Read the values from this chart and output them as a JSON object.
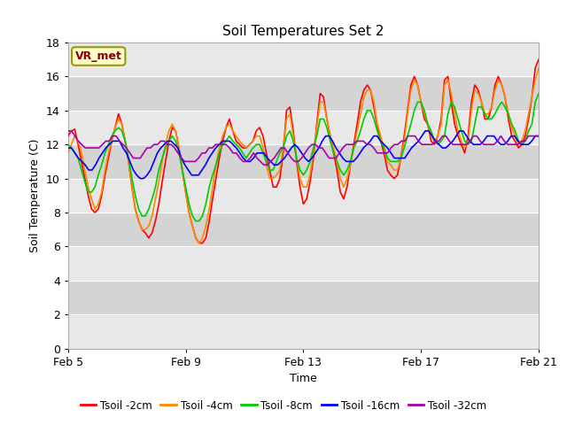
{
  "title": "Soil Temperatures Set 2",
  "xlabel": "Time",
  "ylabel": "Soil Temperature (C)",
  "ylim": [
    0,
    18
  ],
  "yticks": [
    0,
    2,
    4,
    6,
    8,
    10,
    12,
    14,
    16,
    18
  ],
  "background_color": "#ffffff",
  "plot_bg_light": "#f0f0f0",
  "plot_bg_dark": "#d8d8d8",
  "annotation_text": "VR_met",
  "annotation_bg": "#ffffcc",
  "annotation_border": "#999900",
  "legend_labels": [
    "Tsoil -2cm",
    "Tsoil -4cm",
    "Tsoil -8cm",
    "Tsoil -16cm",
    "Tsoil -32cm"
  ],
  "line_colors": [
    "#ff0000",
    "#ff8800",
    "#00cc00",
    "#0000ff",
    "#aa00aa"
  ],
  "x_tick_labels": [
    "Feb 5",
    "Feb 9",
    "Feb 13",
    "Feb 17",
    "Feb 21"
  ],
  "x_tick_positions": [
    0,
    4,
    8,
    12,
    16
  ],
  "series": {
    "tsoil_2cm": [
      12.5,
      12.8,
      12.9,
      12.0,
      11.0,
      10.0,
      9.0,
      8.2,
      8.0,
      8.2,
      9.0,
      10.2,
      11.2,
      12.2,
      13.0,
      13.8,
      13.2,
      12.2,
      11.0,
      9.5,
      8.2,
      7.5,
      7.0,
      6.8,
      6.5,
      6.8,
      7.5,
      8.5,
      9.8,
      11.0,
      12.2,
      13.0,
      12.8,
      11.8,
      10.5,
      9.2,
      8.0,
      7.2,
      6.5,
      6.2,
      6.2,
      6.5,
      7.5,
      8.8,
      10.0,
      11.2,
      12.2,
      13.0,
      13.5,
      12.8,
      12.2,
      12.0,
      11.8,
      11.8,
      12.0,
      12.2,
      12.8,
      13.0,
      12.5,
      11.5,
      10.5,
      9.5,
      9.5,
      10.0,
      11.5,
      14.0,
      14.2,
      12.8,
      11.0,
      9.5,
      8.5,
      8.8,
      9.8,
      11.2,
      13.2,
      15.0,
      14.8,
      13.5,
      12.5,
      11.5,
      10.5,
      9.2,
      8.8,
      9.5,
      10.8,
      12.0,
      13.2,
      14.5,
      15.2,
      15.5,
      15.2,
      14.2,
      13.0,
      12.2,
      11.5,
      10.5,
      10.2,
      10.0,
      10.2,
      11.2,
      12.5,
      14.0,
      15.5,
      16.0,
      15.5,
      14.5,
      13.5,
      13.2,
      12.2,
      12.0,
      12.5,
      13.5,
      15.8,
      16.0,
      14.5,
      13.2,
      12.5,
      12.0,
      11.5,
      12.5,
      14.5,
      15.5,
      15.2,
      14.5,
      13.5,
      13.5,
      14.2,
      15.5,
      16.0,
      15.5,
      14.8,
      13.5,
      12.5,
      12.2,
      11.8,
      12.0,
      12.5,
      13.5,
      14.8,
      16.5,
      17.0
    ],
    "tsoil_4cm": [
      11.5,
      12.0,
      12.5,
      12.2,
      11.5,
      10.5,
      9.5,
      8.8,
      8.2,
      8.5,
      9.2,
      10.5,
      11.5,
      12.2,
      13.0,
      13.5,
      13.2,
      12.2,
      11.0,
      9.5,
      8.2,
      7.5,
      7.0,
      7.0,
      7.2,
      7.8,
      8.8,
      9.8,
      11.0,
      12.0,
      12.8,
      13.2,
      12.8,
      11.8,
      10.5,
      9.2,
      8.0,
      7.2,
      6.5,
      6.2,
      6.5,
      7.2,
      8.2,
      9.5,
      10.8,
      11.8,
      12.5,
      13.0,
      13.2,
      12.8,
      12.5,
      12.2,
      12.0,
      11.8,
      12.0,
      12.2,
      12.5,
      12.5,
      11.8,
      10.8,
      10.0,
      10.0,
      10.2,
      10.5,
      11.8,
      13.5,
      13.8,
      12.5,
      11.2,
      10.0,
      9.5,
      9.5,
      10.2,
      11.5,
      13.0,
      14.5,
      14.5,
      13.5,
      12.5,
      11.8,
      11.0,
      10.0,
      9.5,
      10.0,
      10.8,
      11.8,
      12.8,
      13.8,
      14.8,
      15.2,
      15.2,
      14.5,
      13.2,
      12.5,
      11.8,
      11.0,
      10.8,
      10.5,
      10.5,
      11.2,
      12.2,
      13.8,
      15.2,
      15.8,
      15.5,
      14.5,
      13.8,
      13.2,
      12.5,
      12.2,
      12.5,
      13.2,
      15.5,
      15.8,
      15.0,
      13.8,
      12.8,
      12.2,
      11.8,
      12.2,
      14.0,
      15.2,
      15.0,
      14.5,
      13.8,
      13.8,
      14.2,
      15.2,
      15.8,
      15.5,
      14.8,
      13.8,
      13.0,
      12.5,
      12.0,
      12.2,
      12.8,
      13.8,
      14.8,
      15.8,
      16.5
    ],
    "tsoil_8cm": [
      12.0,
      11.8,
      11.5,
      11.2,
      10.5,
      9.8,
      9.2,
      9.2,
      9.5,
      10.2,
      10.8,
      11.5,
      12.0,
      12.5,
      12.8,
      13.0,
      12.8,
      12.2,
      11.2,
      10.0,
      9.0,
      8.2,
      7.8,
      7.8,
      8.2,
      8.8,
      9.5,
      10.5,
      11.2,
      11.8,
      12.2,
      12.5,
      12.2,
      11.5,
      10.5,
      9.5,
      8.5,
      7.8,
      7.5,
      7.5,
      7.8,
      8.5,
      9.5,
      10.2,
      10.8,
      11.5,
      12.0,
      12.2,
      12.5,
      12.2,
      12.0,
      11.8,
      11.5,
      11.2,
      11.5,
      11.8,
      12.0,
      12.0,
      11.5,
      11.0,
      10.5,
      10.5,
      11.0,
      11.5,
      11.8,
      12.5,
      12.8,
      12.2,
      11.2,
      10.5,
      10.2,
      10.5,
      11.0,
      11.8,
      12.5,
      13.5,
      13.5,
      13.0,
      12.2,
      11.5,
      11.0,
      10.5,
      10.2,
      10.5,
      11.0,
      11.8,
      12.2,
      12.8,
      13.5,
      14.0,
      14.0,
      13.5,
      12.8,
      12.2,
      11.8,
      11.2,
      11.0,
      11.0,
      11.0,
      11.2,
      11.8,
      12.5,
      13.2,
      14.0,
      14.5,
      14.5,
      14.0,
      13.2,
      12.8,
      12.2,
      12.0,
      12.2,
      12.5,
      13.8,
      14.5,
      14.2,
      13.5,
      12.8,
      12.2,
      12.0,
      12.2,
      13.2,
      14.2,
      14.2,
      13.8,
      13.5,
      13.5,
      13.8,
      14.2,
      14.5,
      14.2,
      13.8,
      13.2,
      12.8,
      12.2,
      12.0,
      12.2,
      12.8,
      13.2,
      14.5,
      15.0
    ],
    "tsoil_16cm": [
      11.8,
      11.8,
      11.5,
      11.2,
      11.0,
      10.8,
      10.5,
      10.5,
      10.8,
      11.2,
      11.5,
      11.8,
      12.0,
      12.2,
      12.2,
      12.2,
      11.8,
      11.5,
      11.0,
      10.5,
      10.2,
      10.0,
      10.0,
      10.2,
      10.5,
      11.0,
      11.5,
      11.8,
      12.0,
      12.2,
      12.2,
      12.0,
      11.8,
      11.2,
      10.8,
      10.5,
      10.2,
      10.2,
      10.2,
      10.5,
      10.8,
      11.2,
      11.5,
      11.8,
      12.0,
      12.2,
      12.2,
      12.2,
      12.0,
      11.8,
      11.5,
      11.2,
      11.0,
      11.0,
      11.2,
      11.5,
      11.5,
      11.5,
      11.2,
      11.0,
      10.8,
      10.8,
      11.0,
      11.2,
      11.5,
      11.8,
      12.0,
      11.8,
      11.5,
      11.2,
      11.0,
      11.2,
      11.5,
      11.8,
      12.2,
      12.5,
      12.5,
      12.2,
      11.8,
      11.5,
      11.2,
      11.0,
      11.0,
      11.0,
      11.2,
      11.5,
      11.8,
      12.0,
      12.2,
      12.5,
      12.5,
      12.2,
      12.0,
      11.8,
      11.5,
      11.2,
      11.2,
      11.2,
      11.2,
      11.5,
      11.8,
      12.0,
      12.2,
      12.5,
      12.8,
      12.8,
      12.5,
      12.2,
      12.0,
      11.8,
      11.8,
      12.0,
      12.2,
      12.5,
      12.8,
      12.8,
      12.5,
      12.2,
      12.0,
      12.0,
      12.0,
      12.2,
      12.5,
      12.5,
      12.5,
      12.2,
      12.0,
      12.0,
      12.2,
      12.5,
      12.5,
      12.2,
      12.0,
      12.0,
      12.0,
      12.2,
      12.5,
      12.5
    ],
    "tsoil_32cm": [
      12.8,
      12.8,
      12.5,
      12.2,
      12.0,
      11.8,
      11.8,
      11.8,
      11.8,
      11.8,
      12.0,
      12.2,
      12.2,
      12.5,
      12.5,
      12.2,
      12.0,
      11.8,
      11.5,
      11.2,
      11.2,
      11.2,
      11.5,
      11.8,
      11.8,
      12.0,
      12.0,
      12.2,
      12.2,
      12.0,
      12.0,
      11.8,
      11.5,
      11.2,
      11.0,
      11.0,
      11.0,
      11.0,
      11.2,
      11.5,
      11.5,
      11.8,
      11.8,
      12.0,
      12.0,
      12.0,
      12.0,
      11.8,
      11.5,
      11.5,
      11.2,
      11.0,
      11.0,
      11.2,
      11.5,
      11.2,
      11.0,
      10.8,
      10.8,
      11.0,
      11.2,
      11.5,
      11.8,
      11.8,
      11.5,
      11.2,
      11.0,
      11.0,
      11.2,
      11.5,
      11.8,
      12.0,
      12.0,
      11.8,
      11.8,
      11.5,
      11.2,
      11.2,
      11.2,
      11.5,
      11.8,
      12.0,
      12.0,
      12.0,
      12.2,
      12.2,
      12.2,
      12.0,
      12.0,
      11.8,
      11.5,
      11.5,
      11.5,
      11.5,
      11.8,
      12.0,
      12.0,
      12.2,
      12.2,
      12.5,
      12.5,
      12.5,
      12.2,
      12.0,
      12.0,
      12.0,
      12.0,
      12.2,
      12.2,
      12.5,
      12.5,
      12.2,
      12.0,
      12.0,
      12.0,
      12.0,
      12.0,
      12.2,
      12.5,
      12.5,
      12.2,
      12.0,
      12.0,
      12.0,
      12.0,
      12.2,
      12.5,
      12.2,
      12.0,
      12.0,
      12.0,
      12.0,
      12.2,
      12.2,
      12.5,
      12.5,
      12.5,
      12.5
    ]
  }
}
